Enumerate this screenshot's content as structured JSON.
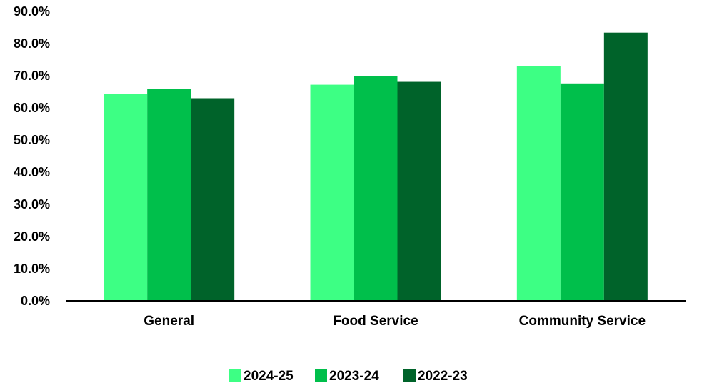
{
  "chart_data": {
    "type": "bar",
    "title": "",
    "xlabel": "",
    "ylabel": "",
    "categories": [
      "General",
      "Food Service",
      "Community Service"
    ],
    "series": [
      {
        "name": "2024-25",
        "values": [
          64.4,
          67.2,
          73.0
        ],
        "color": "#3dff84"
      },
      {
        "name": "2023-24",
        "values": [
          65.8,
          70.0,
          67.6
        ],
        "color": "#00bf4b"
      },
      {
        "name": "2022-23",
        "values": [
          63.0,
          68.1,
          83.4
        ],
        "color": "#00632a"
      }
    ],
    "ylim": [
      0,
      90
    ],
    "yticks": [
      0,
      10,
      20,
      30,
      40,
      50,
      60,
      70,
      80,
      90
    ],
    "ytick_labels": [
      "0.0%",
      "10.0%",
      "20.0%",
      "30.0%",
      "40.0%",
      "50.0%",
      "60.0%",
      "70.0%",
      "80.0%",
      "90.0%"
    ],
    "grid": false,
    "legend": "bottom-center"
  }
}
